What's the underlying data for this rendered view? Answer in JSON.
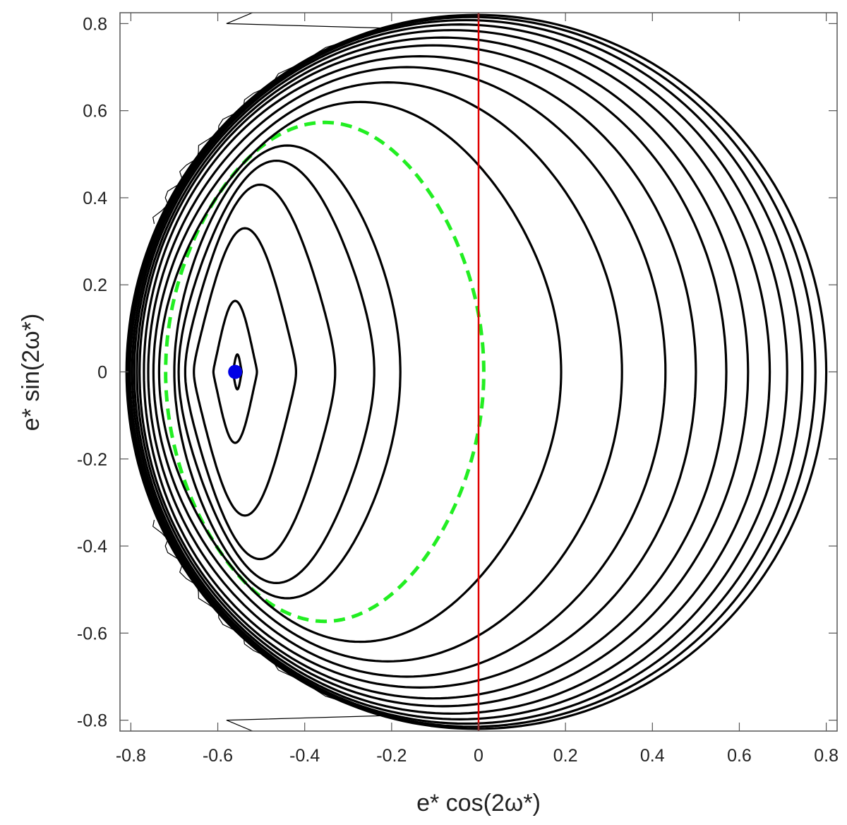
{
  "chart_data": {
    "type": "contour",
    "title": "",
    "xlabel": "e* cos(2ω*)",
    "ylabel": "e* sin(2ω*)",
    "xlim": [
      -0.825,
      0.825
    ],
    "ylim": [
      -0.825,
      0.825
    ],
    "x_ticks": [
      -0.8,
      -0.6,
      -0.4,
      -0.2,
      0,
      0.2,
      0.4,
      0.6,
      0.8
    ],
    "x_tick_labels": [
      "-0.8",
      "-0.6",
      "-0.4",
      "-0.2",
      "0",
      "0.2",
      "0.4",
      "0.6",
      "0.8"
    ],
    "y_ticks": [
      0.8,
      0.6,
      0.4,
      0.2,
      0,
      -0.2,
      -0.4,
      -0.6,
      -0.8
    ],
    "y_tick_labels": [
      "0.8",
      "0.6",
      "0.4",
      "0.2",
      "0",
      "-0.2",
      "-0.4",
      "-0.6",
      "-0.8"
    ],
    "grid": false,
    "legend": "none",
    "boundary_radius": 0.82,
    "contours": [
      {
        "level": 1,
        "style": "solid",
        "x_left": -0.565,
        "x_right": -0.545,
        "y_top": 0.04,
        "k": 0.2
      },
      {
        "level": 2,
        "style": "solid",
        "x_left": -0.61,
        "x_right": -0.51,
        "y_top": 0.163,
        "k": 0.25
      },
      {
        "level": 3,
        "style": "solid",
        "x_left": -0.655,
        "x_right": -0.42,
        "y_top": 0.33,
        "k": 0.35
      },
      {
        "level": 4,
        "style": "solid",
        "x_left": -0.675,
        "x_right": -0.33,
        "y_top": 0.43,
        "k": 0.5
      },
      {
        "level": 5,
        "style": "solid",
        "x_left": -0.69,
        "x_right": -0.24,
        "y_top": 0.485,
        "k": 0.65
      },
      {
        "level": 6,
        "style": "solid",
        "x_left": -0.7,
        "x_right": -0.18,
        "y_top": 0.52,
        "k": 0.8
      },
      {
        "level": 7,
        "style": "dashed",
        "x_left": -0.72,
        "x_right": 0.012,
        "y_top": 0.573,
        "k": 0.9
      },
      {
        "level": 8,
        "style": "solid",
        "x_left": -0.735,
        "x_right": 0.19,
        "y_top": 0.62,
        "k": 0.85
      },
      {
        "level": 9,
        "style": "solid",
        "x_left": -0.748,
        "x_right": 0.33,
        "y_top": 0.665,
        "k": 0.92
      },
      {
        "level": 10,
        "style": "solid",
        "x_left": -0.76,
        "x_right": 0.43,
        "y_top": 0.7,
        "k": 0.96
      },
      {
        "level": 11,
        "style": "solid",
        "x_left": -0.77,
        "x_right": 0.5,
        "y_top": 0.725,
        "k": 1.0
      },
      {
        "level": 12,
        "style": "solid",
        "x_left": -0.78,
        "x_right": 0.57,
        "y_top": 0.75,
        "k": 1.0
      },
      {
        "level": 13,
        "style": "solid",
        "x_left": -0.786,
        "x_right": 0.62,
        "y_top": 0.768,
        "k": 1.0
      },
      {
        "level": 14,
        "style": "solid",
        "x_left": -0.792,
        "x_right": 0.67,
        "y_top": 0.785,
        "k": 1.0
      },
      {
        "level": 15,
        "style": "solid",
        "x_left": -0.797,
        "x_right": 0.71,
        "y_top": 0.798,
        "k": 1.0
      },
      {
        "level": 16,
        "style": "solid",
        "x_left": -0.802,
        "x_right": 0.745,
        "y_top": 0.808,
        "k": 1.0
      },
      {
        "level": 17,
        "style": "solid",
        "x_left": -0.806,
        "x_right": 0.775,
        "y_top": 0.815,
        "k": 1.0
      },
      {
        "level": 18,
        "style": "solid",
        "x_left": -0.81,
        "x_right": 0.8,
        "y_top": 0.82,
        "k": 1.0
      }
    ],
    "vertical_line": {
      "x": 0,
      "color": "#e00000"
    },
    "point": {
      "x": -0.56,
      "y": 0.0,
      "color": "#0000e6"
    },
    "dashed_color": "#22ee22"
  }
}
